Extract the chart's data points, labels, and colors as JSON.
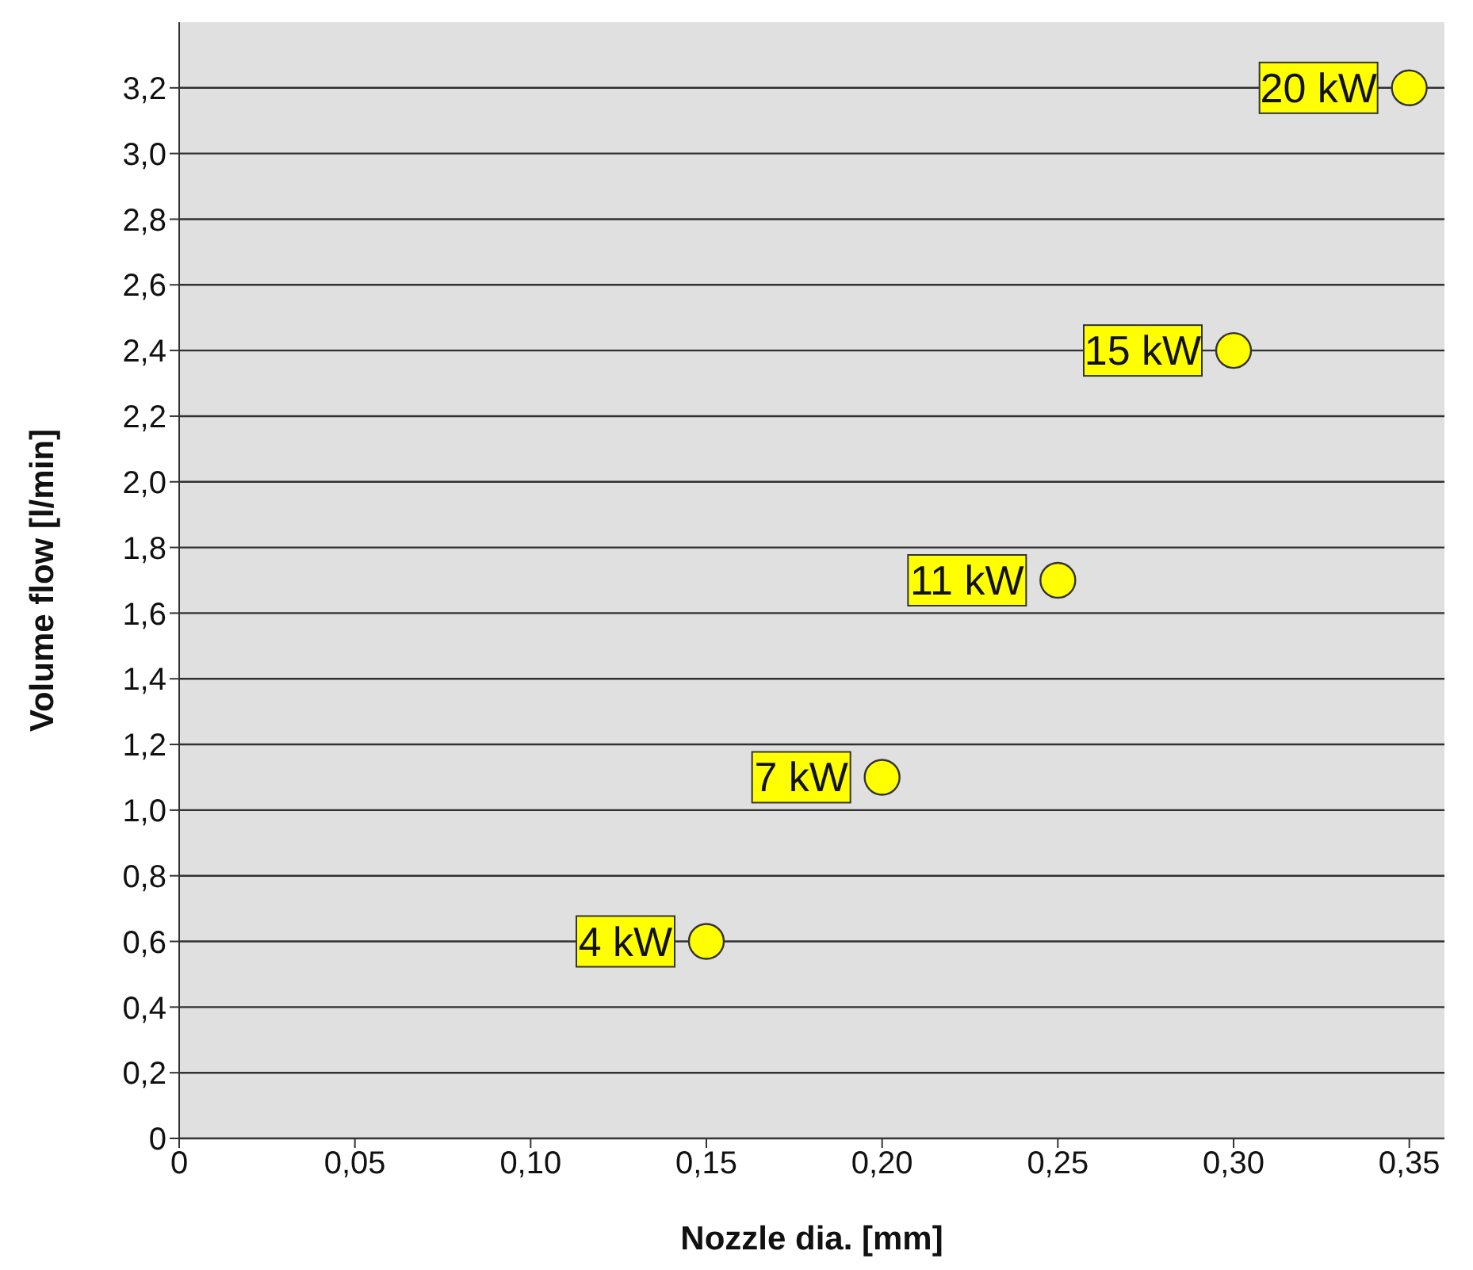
{
  "chart_data": {
    "type": "scatter",
    "xlabel": "Nozzle dia. [mm]",
    "ylabel": "Volume flow [l/min]",
    "x": [
      0.15,
      0.2,
      0.25,
      0.3,
      0.35
    ],
    "series": [
      {
        "color": "#ffff00",
        "values": [
          0.6,
          1.1,
          1.7,
          2.4,
          3.2
        ]
      }
    ],
    "xlim": [
      0,
      0.36
    ],
    "xticks": [
      0,
      {
        "value": 0.05,
        "label": "0,05"
      },
      {
        "value": 0.1,
        "label": "0,10"
      },
      {
        "value": 0.15,
        "label": "0,15"
      },
      {
        "value": 0.2,
        "label": "0,20"
      },
      {
        "value": 0.25,
        "label": "0,25"
      },
      {
        "value": 0.3,
        "label": "0,30"
      },
      {
        "value": 0.35,
        "label": "0,35"
      }
    ],
    "ylim": [
      0,
      3.4
    ],
    "yticks": [
      0,
      {
        "value": 0.2,
        "label": "0,2"
      },
      {
        "value": 0.4,
        "label": "0,4"
      },
      {
        "value": 0.6,
        "label": "0,6"
      },
      {
        "value": 0.8,
        "label": "0,8"
      },
      {
        "value": 1.0,
        "label": "1,0"
      },
      {
        "value": 1.2,
        "label": "1,2"
      },
      {
        "value": 1.4,
        "label": "1,4"
      },
      {
        "value": 1.6,
        "label": "1,6"
      },
      {
        "value": 1.8,
        "label": "1,8"
      },
      {
        "value": 2.0,
        "label": "2,0"
      },
      {
        "value": 2.2,
        "label": "2,2"
      },
      {
        "value": 2.4,
        "label": "2,4"
      },
      {
        "value": 2.6,
        "label": "2,6"
      },
      {
        "value": 2.8,
        "label": "2,8"
      },
      {
        "value": 3.0,
        "label": "3,0"
      },
      {
        "value": 3.2,
        "label": "3,2"
      }
    ],
    "grid": "y",
    "marker": "circle",
    "legend": false,
    "annotations": [
      {
        "text": "4 kW",
        "x": 0.15,
        "y": 0.6
      },
      {
        "text": "7 kW",
        "x": 0.2,
        "y": 1.1
      },
      {
        "text": "11 kW",
        "x": 0.25,
        "y": 1.7
      },
      {
        "text": "15 kW",
        "x": 0.3,
        "y": 2.4
      },
      {
        "text": "20 kW",
        "x": 0.35,
        "y": 3.2
      }
    ]
  }
}
